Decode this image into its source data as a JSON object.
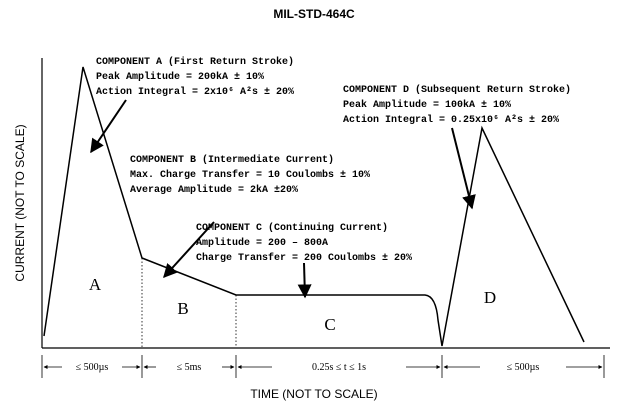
{
  "title": "MIL-STD-464C",
  "y_axis_label": "CURRENT (NOT TO SCALE)",
  "x_axis_label": "TIME (NOT TO SCALE)",
  "annotations": [
    {
      "lines": [
        "COMPONENT A (First Return Stroke)",
        "Peak Amplitude = 200kA ± 10%",
        "Action Integral = 2x10⁶ A²s ± 20%"
      ]
    },
    {
      "lines": [
        "COMPONENT B (Intermediate Current)",
        "Max. Charge Transfer = 10 Coulombs ± 10%",
        "Average Amplitude = 2kA ±20%"
      ]
    },
    {
      "lines": [
        "COMPONENT C (Continuing Current)",
        "Amplitude = 200 – 800A",
        "Charge Transfer = 200 Coulombs ± 20%"
      ]
    },
    {
      "lines": [
        "COMPONENT D (Subsequent Return Stroke)",
        "Peak Amplitude = 100kA ± 10%",
        "Action Integral = 0.25x10⁶ A²s ± 20%"
      ]
    }
  ],
  "regions": [
    "A",
    "B",
    "C",
    "D"
  ],
  "intervals": [
    "≤ 500µs",
    "≤ 5ms",
    "0.25s ≤ t ≤ 1s",
    "≤ 500µs"
  ]
}
